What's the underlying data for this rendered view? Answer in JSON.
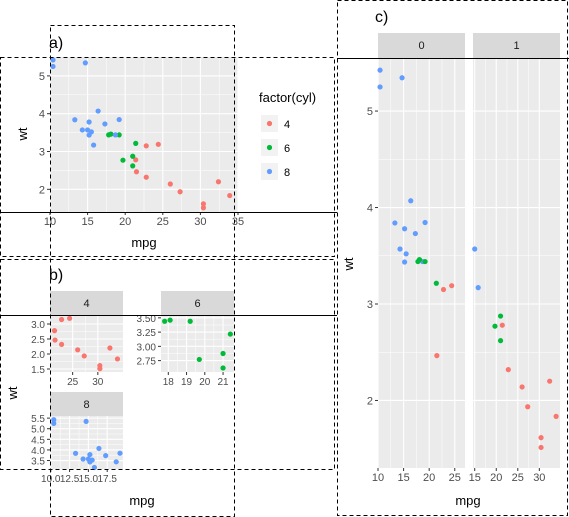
{
  "colors": {
    "cyl4": "#F8766D",
    "cyl6": "#00BA38",
    "cyl8": "#619CFF",
    "panel_bg": "#EBEBEB",
    "strip_bg": "#D9D9D9",
    "grid": "#FFFFFF"
  },
  "chart_data": [
    {
      "id": "a",
      "tag": "a)",
      "type": "scatter",
      "xlabel": "mpg",
      "ylabel": "wt",
      "xlim": [
        10,
        35
      ],
      "ylim": [
        1.4,
        5.5
      ],
      "xticks": [
        "10",
        "15",
        "20",
        "25",
        "30",
        "35"
      ],
      "yticks": [
        "2",
        "3",
        "4",
        "5"
      ],
      "legend": {
        "title": "factor(cyl)",
        "position": "right",
        "entries": [
          "4",
          "6",
          "8"
        ]
      },
      "series": [
        {
          "name": "4",
          "x": [
            22.8,
            24.4,
            22.8,
            32.4,
            30.4,
            33.9,
            21.5,
            27.3,
            26.0,
            30.4,
            21.4
          ],
          "y": [
            2.32,
            3.19,
            3.15,
            2.2,
            1.615,
            1.835,
            2.465,
            1.935,
            2.14,
            1.513,
            2.78
          ]
        },
        {
          "name": "6",
          "x": [
            21.0,
            21.0,
            21.4,
            18.1,
            19.2,
            17.8,
            19.7
          ],
          "y": [
            2.62,
            2.875,
            3.215,
            3.46,
            3.44,
            3.44,
            2.77
          ]
        },
        {
          "name": "8",
          "x": [
            18.7,
            14.3,
            16.4,
            17.3,
            15.2,
            10.4,
            10.4,
            14.7,
            15.5,
            15.2,
            13.3,
            19.2,
            15.8,
            15.0
          ],
          "y": [
            3.44,
            3.57,
            4.07,
            3.73,
            3.78,
            5.25,
            5.424,
            5.345,
            3.52,
            3.435,
            3.84,
            3.845,
            3.17,
            3.57
          ]
        }
      ]
    },
    {
      "id": "b",
      "tag": "b)",
      "type": "scatter",
      "xlabel": "mpg",
      "ylabel": "wt",
      "facets": [
        {
          "strip": "4",
          "xticks": [
            "25",
            "30"
          ],
          "yticks": [
            "1.5",
            "2.0",
            "2.5",
            "3.0"
          ],
          "xlim": [
            20.5,
            35
          ],
          "ylim": [
            1.4,
            3.3
          ],
          "series": "4"
        },
        {
          "strip": "6",
          "xticks": [
            "18",
            "19",
            "20",
            "21"
          ],
          "yticks": [
            "2.75",
            "3.00",
            "3.25",
            "3.50"
          ],
          "xlim": [
            17.6,
            21.6
          ],
          "ylim": [
            2.55,
            3.55
          ],
          "series": "6"
        },
        {
          "strip": "8",
          "xticks": [
            "10.0",
            "12.5",
            "15.0",
            "17.5"
          ],
          "yticks": [
            "3.5",
            "4.0",
            "4.5",
            "5.0",
            "5.5"
          ],
          "xlim": [
            9.9,
            19.6
          ],
          "ylim": [
            3.1,
            5.6
          ],
          "series": "8"
        }
      ]
    },
    {
      "id": "c",
      "tag": "c)",
      "type": "scatter",
      "xlabel": "mpg",
      "ylabel": "wt",
      "yticks": [
        "2",
        "3",
        "4",
        "5"
      ],
      "ylim": [
        1.3,
        5.55
      ],
      "facets": [
        {
          "strip": "0",
          "xticks": [
            "10",
            "15",
            "20",
            "25"
          ],
          "xlim": [
            10,
            27
          ],
          "points": [
            {
              "cyl": "6",
              "x": 21.4,
              "y": 3.215
            },
            {
              "cyl": "8",
              "x": 18.7,
              "y": 3.44
            },
            {
              "cyl": "6",
              "x": 18.1,
              "y": 3.46
            },
            {
              "cyl": "8",
              "x": 14.3,
              "y": 3.57
            },
            {
              "cyl": "4",
              "x": 24.4,
              "y": 3.19
            },
            {
              "cyl": "4",
              "x": 22.8,
              "y": 3.15
            },
            {
              "cyl": "6",
              "x": 19.2,
              "y": 3.44
            },
            {
              "cyl": "6",
              "x": 17.8,
              "y": 3.44
            },
            {
              "cyl": "8",
              "x": 16.4,
              "y": 4.07
            },
            {
              "cyl": "8",
              "x": 17.3,
              "y": 3.73
            },
            {
              "cyl": "8",
              "x": 15.2,
              "y": 3.78
            },
            {
              "cyl": "8",
              "x": 10.4,
              "y": 5.25
            },
            {
              "cyl": "8",
              "x": 10.4,
              "y": 5.424
            },
            {
              "cyl": "8",
              "x": 14.7,
              "y": 5.345
            },
            {
              "cyl": "4",
              "x": 21.5,
              "y": 2.465
            },
            {
              "cyl": "8",
              "x": 15.5,
              "y": 3.52
            },
            {
              "cyl": "8",
              "x": 15.2,
              "y": 3.435
            },
            {
              "cyl": "8",
              "x": 13.3,
              "y": 3.84
            },
            {
              "cyl": "8",
              "x": 19.2,
              "y": 3.845
            }
          ]
        },
        {
          "strip": "1",
          "xticks": [
            "15",
            "20",
            "25",
            "30"
          ],
          "xlim": [
            14.6,
            34.8
          ],
          "points": [
            {
              "cyl": "6",
              "x": 21.0,
              "y": 2.62
            },
            {
              "cyl": "6",
              "x": 21.0,
              "y": 2.875
            },
            {
              "cyl": "4",
              "x": 22.8,
              "y": 2.32
            },
            {
              "cyl": "4",
              "x": 32.4,
              "y": 2.2
            },
            {
              "cyl": "4",
              "x": 30.4,
              "y": 1.615
            },
            {
              "cyl": "4",
              "x": 33.9,
              "y": 1.835
            },
            {
              "cyl": "4",
              "x": 27.3,
              "y": 1.935
            },
            {
              "cyl": "4",
              "x": 26.0,
              "y": 2.14
            },
            {
              "cyl": "4",
              "x": 30.4,
              "y": 1.513
            },
            {
              "cyl": "8",
              "x": 15.8,
              "y": 3.17
            },
            {
              "cyl": "6",
              "x": 19.7,
              "y": 2.77
            },
            {
              "cyl": "8",
              "x": 15.0,
              "y": 3.57
            },
            {
              "cyl": "4",
              "x": 21.4,
              "y": 2.78
            }
          ]
        }
      ]
    }
  ]
}
